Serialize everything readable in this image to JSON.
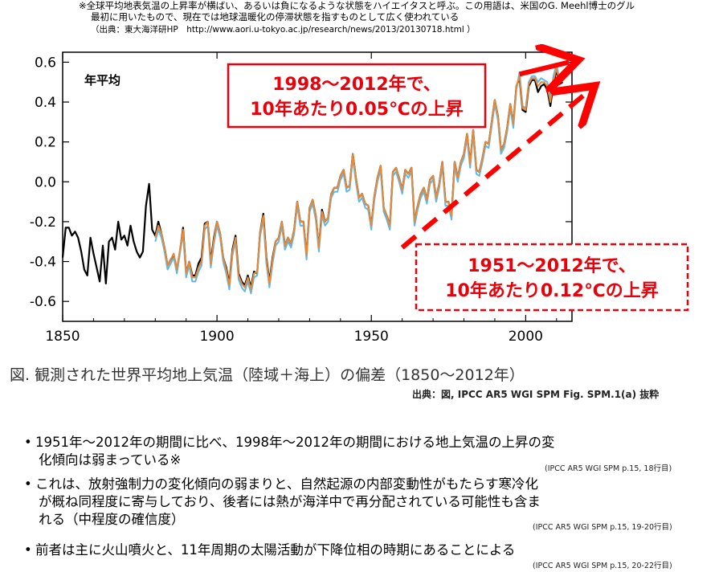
{
  "notes": {
    "line1": "※全球平均地表気温の上昇率が横ばい、あるいは負になるような状態をハイエイタスと呼ぶ。この用語は、米国のG. Meehl博士のグル",
    "line2": "最初に用いたもので、現在では地球温暖化の停滞状態を指すものとして広く使われている",
    "line3": "（出典：東大海洋研HP　http://www.aori.u-tokyo.ac.jp/research/news/2013/20130718.html ）"
  },
  "chart_data": {
    "type": "line",
    "panel_label": "年平均",
    "xlim": [
      1850,
      2015
    ],
    "ylim": [
      -0.7,
      0.65
    ],
    "x_ticks": [
      1850,
      1900,
      1950,
      2000
    ],
    "y_ticks": [
      0.6,
      0.4,
      0.2,
      0.0,
      -0.2,
      -0.4,
      -0.6
    ],
    "y_tick_labels": [
      "0.6",
      "0.4",
      "0.2",
      "0.0",
      "-0.2",
      "-0.4",
      "-0.6"
    ],
    "series": [
      {
        "color": "#000000",
        "x": [
          1850,
          1851,
          1852,
          1853,
          1854,
          1855,
          1856,
          1857,
          1858,
          1859,
          1860,
          1861,
          1862,
          1863,
          1864,
          1865,
          1866,
          1867,
          1868,
          1869,
          1870,
          1871,
          1872,
          1873,
          1874,
          1875,
          1876,
          1877,
          1878,
          1879,
          1880,
          1881,
          1882,
          1883,
          1884,
          1885,
          1886,
          1887,
          1888,
          1889,
          1890,
          1891,
          1892,
          1893,
          1894,
          1895,
          1896,
          1897,
          1898,
          1899,
          1900,
          1901,
          1902,
          1903,
          1904,
          1905,
          1906,
          1907,
          1908,
          1909,
          1910,
          1911,
          1912,
          1913,
          1914,
          1915,
          1916,
          1917,
          1918,
          1919,
          1920,
          1921,
          1922,
          1923,
          1924,
          1925,
          1926,
          1927,
          1928,
          1929,
          1930,
          1931,
          1932,
          1933,
          1934,
          1935,
          1936,
          1937,
          1938,
          1939,
          1940,
          1941,
          1942,
          1943,
          1944,
          1945,
          1946,
          1947,
          1948,
          1949,
          1950,
          1951,
          1952,
          1953,
          1954,
          1955,
          1956,
          1957,
          1958,
          1959,
          1960,
          1961,
          1962,
          1963,
          1964,
          1965,
          1966,
          1967,
          1968,
          1969,
          1970,
          1971,
          1972,
          1973,
          1974,
          1975,
          1976,
          1977,
          1978,
          1979,
          1980,
          1981,
          1982,
          1983,
          1984,
          1985,
          1986,
          1987,
          1988,
          1989,
          1990,
          1991,
          1992,
          1993,
          1994,
          1995,
          1996,
          1997,
          1998,
          1999,
          2000,
          2001,
          2002,
          2003,
          2004,
          2005,
          2006,
          2007,
          2008,
          2009,
          2010,
          2011,
          2012
        ],
        "y": [
          -0.38,
          -0.23,
          -0.23,
          -0.27,
          -0.25,
          -0.28,
          -0.35,
          -0.44,
          -0.47,
          -0.28,
          -0.36,
          -0.43,
          -0.5,
          -0.32,
          -0.51,
          -0.3,
          -0.28,
          -0.34,
          -0.2,
          -0.29,
          -0.27,
          -0.32,
          -0.22,
          -0.3,
          -0.35,
          -0.38,
          -0.35,
          -0.12,
          -0.01,
          -0.24,
          -0.27,
          -0.2,
          -0.26,
          -0.33,
          -0.42,
          -0.39,
          -0.37,
          -0.44,
          -0.35,
          -0.23,
          -0.46,
          -0.4,
          -0.47,
          -0.47,
          -0.41,
          -0.38,
          -0.21,
          -0.2,
          -0.4,
          -0.28,
          -0.2,
          -0.26,
          -0.38,
          -0.43,
          -0.51,
          -0.34,
          -0.27,
          -0.46,
          -0.5,
          -0.52,
          -0.47,
          -0.53,
          -0.45,
          -0.46,
          -0.25,
          -0.16,
          -0.38,
          -0.5,
          -0.38,
          -0.3,
          -0.28,
          -0.2,
          -0.32,
          -0.28,
          -0.31,
          -0.24,
          -0.1,
          -0.2,
          -0.2,
          -0.37,
          -0.13,
          -0.09,
          -0.17,
          -0.33,
          -0.14,
          -0.2,
          -0.18,
          -0.06,
          -0.03,
          -0.03,
          0.03,
          0.06,
          -0.03,
          -0.02,
          0.14,
          0.02,
          -0.08,
          -0.06,
          -0.11,
          -0.12,
          -0.22,
          -0.07,
          0.02,
          0.08,
          -0.13,
          -0.17,
          -0.22,
          0.05,
          0.07,
          0.02,
          -0.04,
          0.06,
          0.04,
          0.07,
          -0.2,
          -0.12,
          -0.06,
          -0.03,
          -0.09,
          0.01,
          0.03,
          -0.08,
          -0.01,
          0.1,
          -0.1,
          -0.1,
          -0.17,
          0.1,
          0.02,
          0.1,
          0.14,
          0.24,
          0.09,
          0.26,
          0.06,
          0.05,
          0.12,
          0.2,
          0.19,
          0.3,
          0.41,
          0.33,
          0.16,
          0.19,
          0.27,
          0.39,
          0.29,
          0.48,
          0.52,
          0.36,
          0.35,
          0.48,
          0.51,
          0.51,
          0.45,
          0.48,
          0.49,
          0.46,
          0.38,
          0.49,
          0.56,
          0.49,
          0.5
        ]
      },
      {
        "color": "#5fb8e6",
        "x": [
          1880,
          1881,
          1882,
          1883,
          1884,
          1885,
          1886,
          1887,
          1888,
          1889,
          1890,
          1891,
          1892,
          1893,
          1894,
          1895,
          1896,
          1897,
          1898,
          1899,
          1900,
          1901,
          1902,
          1903,
          1904,
          1905,
          1906,
          1907,
          1908,
          1909,
          1910,
          1911,
          1912,
          1913,
          1914,
          1915,
          1916,
          1917,
          1918,
          1919,
          1920,
          1921,
          1922,
          1923,
          1924,
          1925,
          1926,
          1927,
          1928,
          1929,
          1930,
          1931,
          1932,
          1933,
          1934,
          1935,
          1936,
          1937,
          1938,
          1939,
          1940,
          1941,
          1942,
          1943,
          1944,
          1945,
          1946,
          1947,
          1948,
          1949,
          1950,
          1951,
          1952,
          1953,
          1954,
          1955,
          1956,
          1957,
          1958,
          1959,
          1960,
          1961,
          1962,
          1963,
          1964,
          1965,
          1966,
          1967,
          1968,
          1969,
          1970,
          1971,
          1972,
          1973,
          1974,
          1975,
          1976,
          1977,
          1978,
          1979,
          1980,
          1981,
          1982,
          1983,
          1984,
          1985,
          1986,
          1987,
          1988,
          1989,
          1990,
          1991,
          1992,
          1993,
          1994,
          1995,
          1996,
          1997,
          1998,
          1999,
          2000,
          2001,
          2002,
          2003,
          2004,
          2005,
          2006,
          2007,
          2008,
          2009,
          2010,
          2011,
          2012
        ],
        "y": [
          -0.3,
          -0.24,
          -0.28,
          -0.35,
          -0.44,
          -0.41,
          -0.38,
          -0.46,
          -0.36,
          -0.26,
          -0.48,
          -0.42,
          -0.5,
          -0.5,
          -0.45,
          -0.42,
          -0.24,
          -0.22,
          -0.43,
          -0.31,
          -0.22,
          -0.28,
          -0.4,
          -0.46,
          -0.54,
          -0.37,
          -0.3,
          -0.49,
          -0.53,
          -0.55,
          -0.5,
          -0.56,
          -0.48,
          -0.47,
          -0.27,
          -0.19,
          -0.41,
          -0.53,
          -0.41,
          -0.32,
          -0.3,
          -0.22,
          -0.34,
          -0.3,
          -0.33,
          -0.26,
          -0.12,
          -0.22,
          -0.22,
          -0.39,
          -0.15,
          -0.11,
          -0.19,
          -0.35,
          -0.17,
          -0.22,
          -0.2,
          -0.08,
          -0.05,
          -0.05,
          0.01,
          0.04,
          -0.05,
          -0.04,
          0.12,
          0.0,
          -0.1,
          -0.08,
          -0.13,
          -0.14,
          -0.24,
          -0.09,
          0.0,
          0.06,
          -0.15,
          -0.19,
          -0.24,
          0.03,
          0.05,
          0.0,
          -0.06,
          0.04,
          0.02,
          0.05,
          -0.22,
          -0.14,
          -0.08,
          -0.05,
          -0.11,
          -0.01,
          0.01,
          -0.1,
          -0.03,
          0.08,
          -0.12,
          -0.12,
          -0.19,
          0.08,
          0.0,
          0.08,
          0.12,
          0.22,
          0.07,
          0.24,
          0.04,
          0.03,
          0.1,
          0.18,
          0.17,
          0.28,
          0.39,
          0.31,
          0.14,
          0.17,
          0.25,
          0.37,
          0.27,
          0.46,
          0.55,
          0.38,
          0.37,
          0.5,
          0.53,
          0.53,
          0.5,
          0.52,
          0.51,
          0.5,
          0.42,
          0.53,
          0.59,
          0.51,
          0.53
        ]
      },
      {
        "color": "#e58a3a",
        "x": [
          1880,
          1881,
          1882,
          1883,
          1884,
          1885,
          1886,
          1887,
          1888,
          1889,
          1890,
          1891,
          1892,
          1893,
          1894,
          1895,
          1896,
          1897,
          1898,
          1899,
          1900,
          1901,
          1902,
          1903,
          1904,
          1905,
          1906,
          1907,
          1908,
          1909,
          1910,
          1911,
          1912,
          1913,
          1914,
          1915,
          1916,
          1917,
          1918,
          1919,
          1920,
          1921,
          1922,
          1923,
          1924,
          1925,
          1926,
          1927,
          1928,
          1929,
          1930,
          1931,
          1932,
          1933,
          1934,
          1935,
          1936,
          1937,
          1938,
          1939,
          1940,
          1941,
          1942,
          1943,
          1944,
          1945,
          1946,
          1947,
          1948,
          1949,
          1950,
          1951,
          1952,
          1953,
          1954,
          1955,
          1956,
          1957,
          1958,
          1959,
          1960,
          1961,
          1962,
          1963,
          1964,
          1965,
          1966,
          1967,
          1968,
          1969,
          1970,
          1971,
          1972,
          1973,
          1974,
          1975,
          1976,
          1977,
          1978,
          1979,
          1980,
          1981,
          1982,
          1983,
          1984,
          1985,
          1986,
          1987,
          1988,
          1989,
          1990,
          1991,
          1992,
          1993,
          1994,
          1995,
          1996,
          1997,
          1998,
          1999,
          2000,
          2001,
          2002,
          2003,
          2004,
          2005,
          2006,
          2007,
          2008,
          2009,
          2010,
          2011,
          2012
        ],
        "y": [
          -0.28,
          -0.22,
          -0.26,
          -0.33,
          -0.42,
          -0.39,
          -0.36,
          -0.44,
          -0.34,
          -0.24,
          -0.46,
          -0.4,
          -0.48,
          -0.48,
          -0.43,
          -0.4,
          -0.22,
          -0.2,
          -0.41,
          -0.29,
          -0.2,
          -0.26,
          -0.38,
          -0.44,
          -0.52,
          -0.35,
          -0.28,
          -0.47,
          -0.51,
          -0.53,
          -0.48,
          -0.54,
          -0.46,
          -0.45,
          -0.25,
          -0.17,
          -0.39,
          -0.51,
          -0.39,
          -0.3,
          -0.28,
          -0.2,
          -0.32,
          -0.28,
          -0.31,
          -0.24,
          -0.1,
          -0.2,
          -0.2,
          -0.37,
          -0.13,
          -0.09,
          -0.17,
          -0.33,
          -0.15,
          -0.2,
          -0.18,
          -0.06,
          -0.03,
          -0.03,
          0.03,
          0.06,
          -0.03,
          -0.02,
          0.14,
          0.02,
          -0.08,
          -0.06,
          -0.11,
          -0.12,
          -0.22,
          -0.07,
          0.02,
          0.08,
          -0.13,
          -0.17,
          -0.22,
          0.05,
          0.07,
          0.02,
          -0.04,
          0.06,
          0.04,
          0.07,
          -0.2,
          -0.12,
          -0.06,
          -0.03,
          -0.09,
          0.01,
          0.03,
          -0.08,
          -0.01,
          0.1,
          -0.1,
          -0.1,
          -0.17,
          0.1,
          0.02,
          0.1,
          0.14,
          0.24,
          0.09,
          0.26,
          0.06,
          0.05,
          0.12,
          0.2,
          0.19,
          0.3,
          0.41,
          0.33,
          0.16,
          0.19,
          0.27,
          0.39,
          0.29,
          0.48,
          0.53,
          0.37,
          0.36,
          0.49,
          0.52,
          0.52,
          0.48,
          0.5,
          0.5,
          0.48,
          0.4,
          0.51,
          0.57,
          0.5,
          0.51
        ]
      }
    ],
    "trend_lines": [
      {
        "label": "1998〜2012年で、\n10年あたり0.05℃の上昇",
        "x": [
          1998,
          2014
        ],
        "y": [
          0.54,
          0.6
        ],
        "color": "#ff0000",
        "style": "solid"
      },
      {
        "label": "1951〜2012年で、\n10年あたり0.12℃の上昇",
        "x": [
          1960,
          2020
        ],
        "y": [
          -0.33,
          0.45
        ],
        "color": "#ff0000",
        "style": "dashed"
      }
    ],
    "annotations": [
      {
        "line1": "1998〜2012年で、",
        "line2": "10年あたり0.05℃の上昇"
      },
      {
        "line1": "1951〜2012年で、",
        "line2": "10年あたり0.12℃の上昇"
      }
    ]
  },
  "caption": "図. 観測された世界平均地上気温（陸域＋海上）の偏差（1850〜2012年）",
  "source": "出典：図, IPCC AR5 WGⅠ SPM Fig. SPM.1(a) 抜粋",
  "bullets": [
    {
      "line1": "1951年〜2012年の期間に比べ、1998年〜2012年の期間における地上気温の上昇の変",
      "line2": "化傾向は弱まっている※",
      "ref": "(IPCC AR5 WGⅠ SPM p.15, 18行目)"
    },
    {
      "line1": "これは、放射強制力の変化傾向の弱まりと、自然起源の内部変動性がもたらす寒冷化",
      "line2": "が概ね同程度に寄与しており、後者には熱が海洋中で再分配されている可能性も含ま",
      "line3": "れる（中程度の確信度）",
      "ref": "(IPCC AR5 WGⅠ SPM p.15, 19-20行目)"
    },
    {
      "line1": "前者は主に火山噴火と、11年周期の太陽活動が下降位相の時期にあることによる",
      "ref": "(IPCC AR5 WGⅠ SPM p.15, 20-22行目)"
    }
  ],
  "bullet_symbol": "•"
}
